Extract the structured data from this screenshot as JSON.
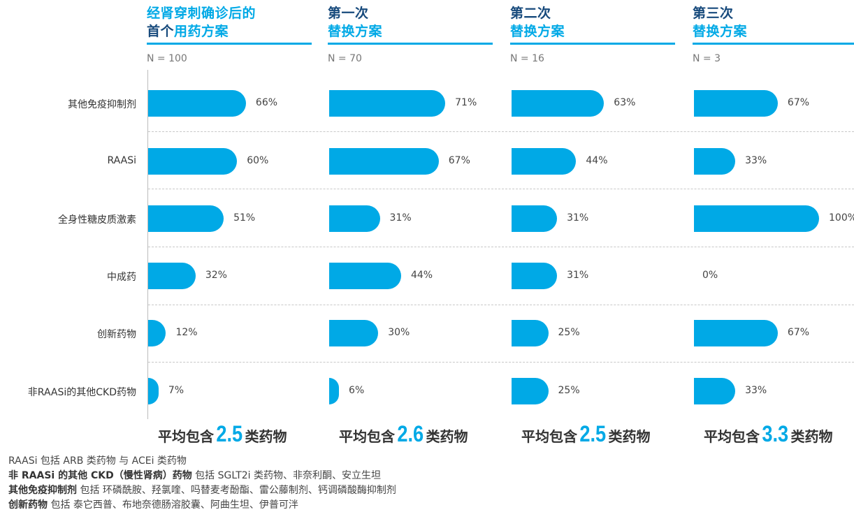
{
  "chart_data": {
    "type": "bar",
    "orientation": "horizontal",
    "categories": [
      "其他免疫抑制剂",
      "RAASi",
      "全身性糖皮质激素",
      "中成药",
      "创新药物",
      "非RAASi的其他CKD药物"
    ],
    "series": [
      {
        "title_parts": [
          {
            "text": "经肾穿刺确诊后的",
            "dark": false
          },
          {
            "text": "首个",
            "dark": true
          },
          {
            "text": "用药方案",
            "dark": false
          }
        ],
        "n": "N = 100",
        "values": [
          66,
          60,
          51,
          32,
          12,
          7
        ],
        "labels": [
          "66%",
          "60%",
          "51%",
          "32%",
          "12%",
          "7%"
        ],
        "avg_prefix": "平均包含",
        "avg": "2.5",
        "avg_suffix": "类药物"
      },
      {
        "title_parts": [
          {
            "text": "第一次",
            "dark": true
          },
          {
            "text": "替换方案",
            "dark": false
          }
        ],
        "n": "N = 70",
        "values": [
          71,
          67,
          31,
          44,
          30,
          6
        ],
        "labels": [
          "71%",
          "67%",
          "31%",
          "44%",
          "30%",
          "6%"
        ],
        "avg_prefix": "平均包含",
        "avg": "2.6",
        "avg_suffix": "类药物"
      },
      {
        "title_parts": [
          {
            "text": "第二次",
            "dark": true
          },
          {
            "text": "替换方案",
            "dark": false
          }
        ],
        "n": "N = 16",
        "values": [
          63,
          44,
          31,
          31,
          25,
          25
        ],
        "labels": [
          "63%",
          "44%",
          "31%",
          "31%",
          "25%",
          "25%"
        ],
        "avg_prefix": "平均包含",
        "avg": "2.5",
        "avg_suffix": "类药物"
      },
      {
        "title_parts": [
          {
            "text": "第三次",
            "dark": true
          },
          {
            "text": "替换方案",
            "dark": false
          }
        ],
        "n": "N = 3",
        "values": [
          67,
          33,
          100,
          0,
          67,
          33
        ],
        "labels": [
          "67%",
          "33%",
          "100%",
          "0%",
          "67%",
          "33%"
        ],
        "avg_prefix": "平均包含",
        "avg": "3.3",
        "avg_suffix": "类药物"
      }
    ],
    "xlim": [
      0,
      100
    ],
    "bar_color": "#00a9e6",
    "dark_color": "#174a7c"
  },
  "notes": [
    {
      "bold": "RAASi",
      "text": " 包括 ARB 类药物 与 ACEi 类药物",
      "bold_is_strong": false
    },
    {
      "bold": "非 RAASi 的其他 CKD（慢性肾病）药物",
      "text": " 包括 SGLT2i 类药物、非奈利酮、安立生坦",
      "bold_is_strong": true
    },
    {
      "bold": "其他免疫抑制剂",
      "text": " 包括 环磷酰胺、羟氯喹、吗替麦考酚酯、雷公藤制剂、钙调磷酸酶抑制剂",
      "bold_is_strong": true
    },
    {
      "bold": "创新药物",
      "text": " 包括 泰它西普、布地奈德肠溶胶囊、阿曲生坦、伊普可泮",
      "bold_is_strong": true
    }
  ]
}
